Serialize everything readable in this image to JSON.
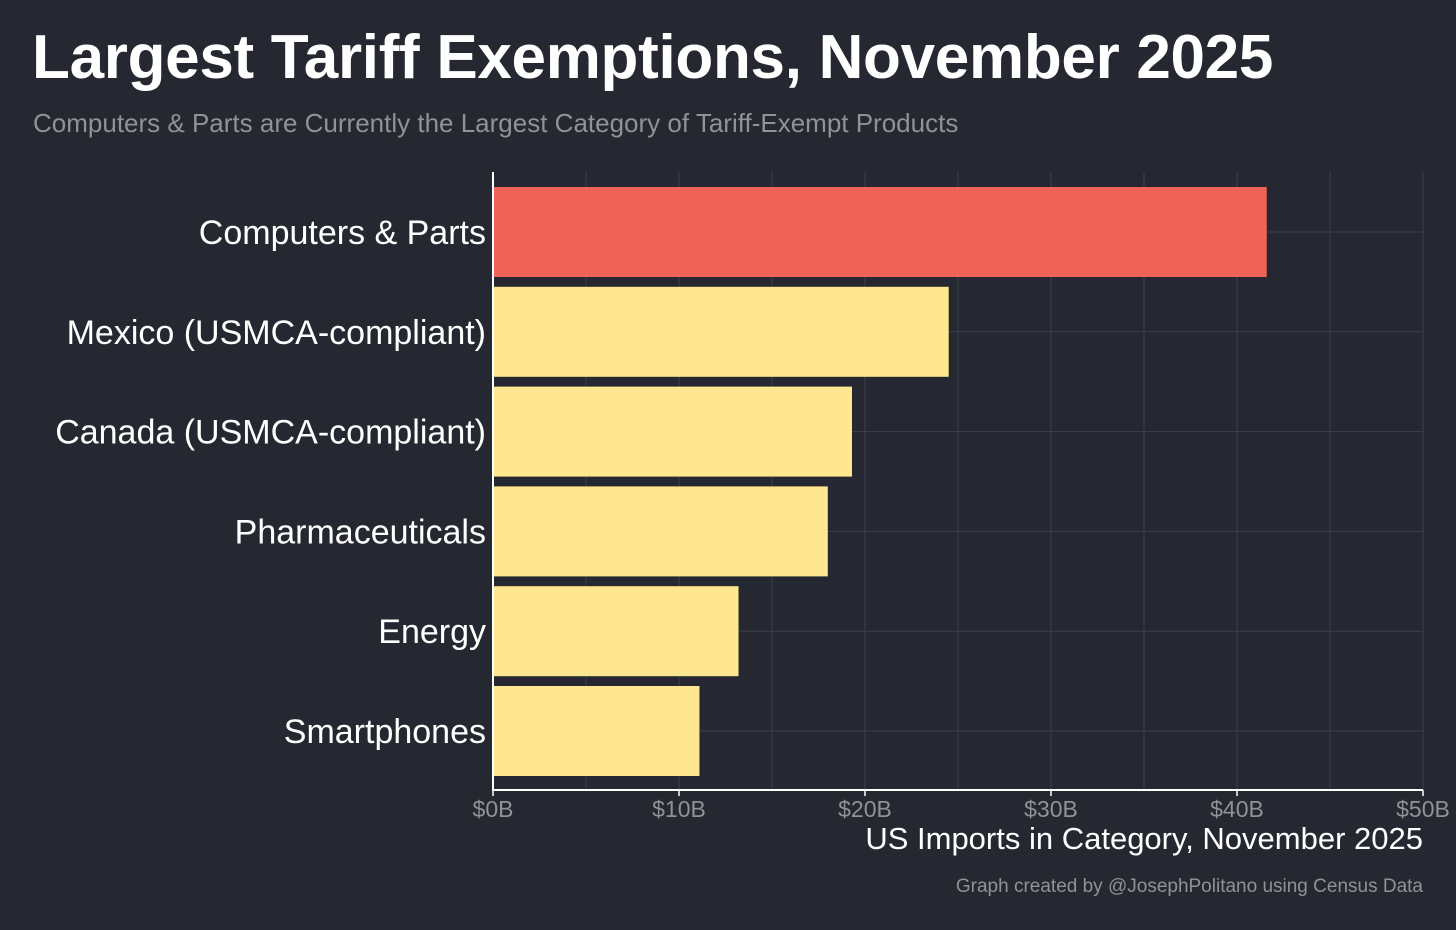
{
  "header": {
    "title": "Largest Tariff Exemptions, November 2025",
    "subtitle": "Computers & Parts are Currently the Largest Category of Tariff-Exempt Products"
  },
  "footer": {
    "caption": "Graph created by @JosephPolitano using Census Data"
  },
  "chart_data": {
    "type": "bar",
    "orientation": "horizontal",
    "title": "Largest Tariff Exemptions, November 2025",
    "subtitle": "Computers & Parts are Currently the Largest Category of Tariff-Exempt Products",
    "xlabel": "US Imports in Category, November 2025",
    "ylabel": "",
    "categories": [
      "Computers & Parts",
      "Mexico (USMCA-compliant)",
      "Canada (USMCA-compliant)",
      "Pharmaceuticals",
      "Energy",
      "Smartphones"
    ],
    "values": [
      41.6,
      24.5,
      19.3,
      18.0,
      13.2,
      11.1
    ],
    "value_unit": "billion USD",
    "xlim": [
      0,
      50
    ],
    "x_ticks": [
      0,
      10,
      20,
      30,
      40,
      50
    ],
    "x_tick_labels": [
      "$0B",
      "$10B",
      "$20B",
      "$30B",
      "$40B",
      "$50B"
    ],
    "grid": true,
    "legend": "none",
    "colors": {
      "highlight": "#ee6258",
      "default": "#fee78e",
      "grid": "#3b3f48",
      "axis": "#ffffff",
      "background": "#252830"
    },
    "highlight_index": 0
  }
}
